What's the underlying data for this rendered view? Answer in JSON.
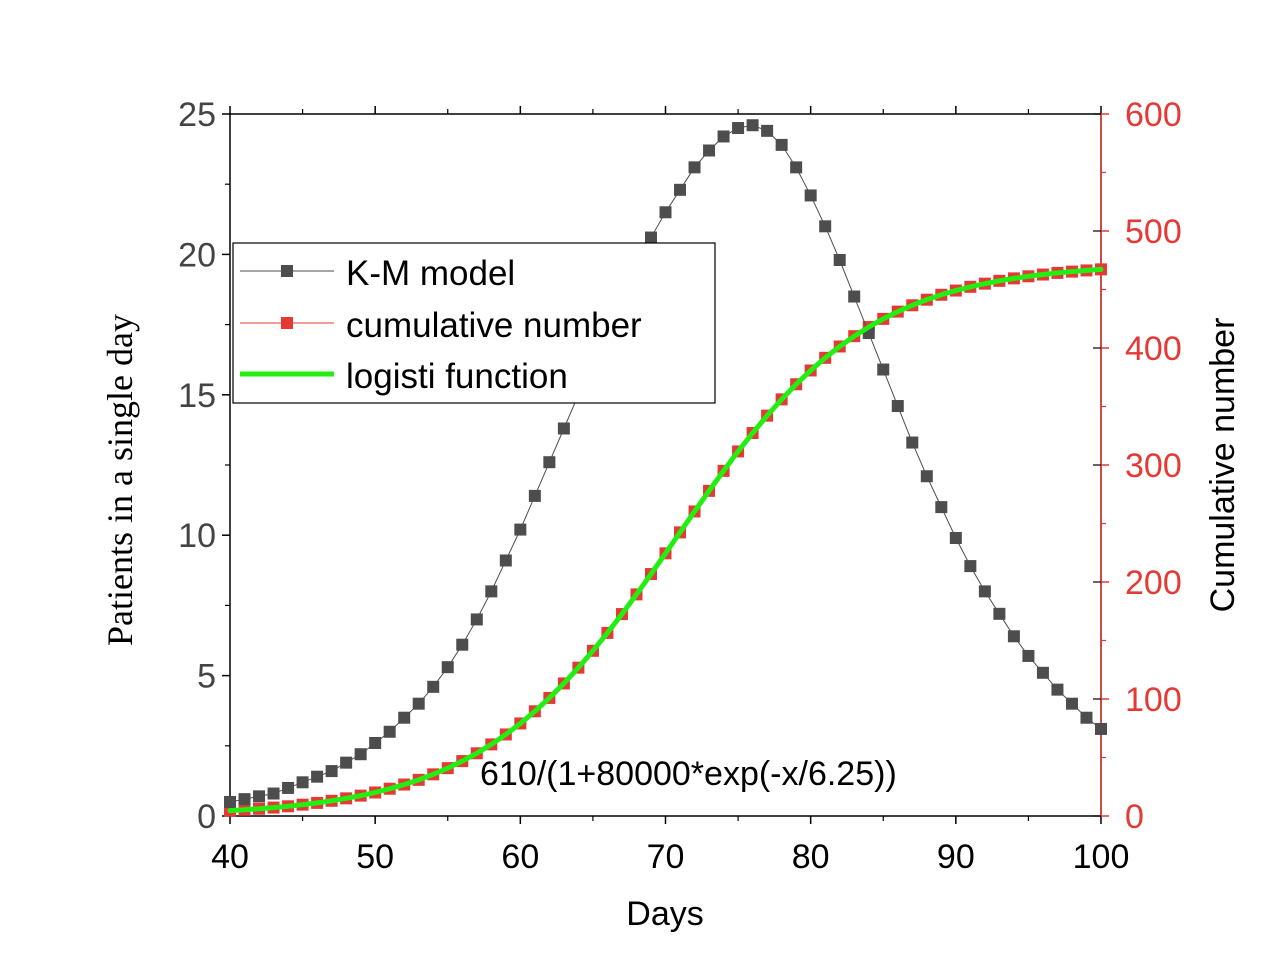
{
  "chart_data": {
    "type": "line",
    "xlabel": "Days",
    "ylabel": "Patients in a single day",
    "y2label": "Cumulative number",
    "xlim": [
      40,
      100
    ],
    "ylim": [
      0,
      25
    ],
    "y2lim": [
      0,
      600
    ],
    "x_ticks": [
      "40",
      "50",
      "60",
      "70",
      "80",
      "90",
      "100"
    ],
    "y_ticks": [
      "0",
      "5",
      "10",
      "15",
      "20",
      "25"
    ],
    "y2_ticks": [
      "0",
      "100",
      "200",
      "300",
      "400",
      "500",
      "600"
    ],
    "grid": false,
    "legend_placement": "upper-left",
    "annotation": "610/(1+80000*exp(-x/6.25))",
    "colors": {
      "km": "#4d4d4d",
      "cumulative": "#e53935",
      "logistic": "#22ee11",
      "right_axis": "#e53935"
    },
    "series": [
      {
        "name": "K-M model",
        "axis": "left",
        "marker": "square",
        "x": [
          40,
          41,
          42,
          43,
          44,
          45,
          46,
          47,
          48,
          49,
          50,
          51,
          52,
          53,
          54,
          55,
          56,
          57,
          58,
          59,
          60,
          61,
          62,
          63,
          64,
          65,
          66,
          67,
          68,
          69,
          70,
          71,
          72,
          73,
          74,
          75,
          76,
          77,
          78,
          79,
          80,
          81,
          82,
          83,
          84,
          85,
          86,
          87,
          88,
          89,
          90,
          91,
          92,
          93,
          94,
          95,
          96,
          97,
          98,
          99,
          100
        ],
        "y": [
          0.5,
          0.6,
          0.7,
          0.8,
          1.0,
          1.2,
          1.4,
          1.6,
          1.9,
          2.2,
          2.6,
          3.0,
          3.5,
          4.0,
          4.6,
          5.3,
          6.1,
          7.0,
          8.0,
          9.1,
          10.2,
          11.4,
          12.6,
          13.8,
          15.0,
          16.2,
          17.4,
          18.5,
          19.6,
          20.6,
          21.5,
          22.3,
          23.1,
          23.7,
          24.2,
          24.5,
          24.6,
          24.4,
          23.9,
          23.1,
          22.1,
          21.0,
          19.8,
          18.5,
          17.2,
          15.9,
          14.6,
          13.3,
          12.1,
          11.0,
          9.9,
          8.9,
          8.0,
          7.2,
          6.4,
          5.7,
          5.1,
          4.5,
          4.0,
          3.5,
          3.1
        ]
      },
      {
        "name": "cumulative number",
        "axis": "right",
        "marker": "square",
        "x": [
          40,
          41,
          42,
          43,
          44,
          45,
          46,
          47,
          48,
          49,
          50,
          51,
          52,
          53,
          54,
          55,
          56,
          57,
          58,
          59,
          60,
          61,
          62,
          63,
          64,
          65,
          66,
          67,
          68,
          69,
          70,
          71,
          72,
          73,
          74,
          75,
          76,
          77,
          78,
          79,
          80,
          81,
          82,
          83,
          84,
          85,
          86,
          87,
          88,
          89,
          90,
          91,
          92,
          93,
          94,
          95,
          96,
          97,
          98,
          99,
          100
        ],
        "y": [
          4.6,
          5.3,
          6.2,
          7.2,
          8.3,
          9.7,
          11.2,
          13.0,
          15.1,
          17.4,
          20.1,
          23.3,
          26.9,
          30.9,
          35.6,
          40.9,
          46.9,
          53.6,
          61.2,
          69.7,
          79.1,
          89.5,
          100.9,
          113.3,
          126.8,
          141.2,
          156.5,
          172.6,
          189.4,
          206.8,
          224.5,
          242.4,
          260.3,
          277.9,
          295.0,
          311.6,
          327.3,
          342.2,
          356.1,
          369.0,
          380.8,
          391.6,
          401.3,
          410.1,
          417.9,
          424.9,
          431.1,
          436.5,
          441.3,
          445.5,
          449.1,
          452.3,
          455.0,
          457.4,
          459.5,
          461.3,
          462.8,
          464.2,
          465.3,
          466.3,
          467.2
        ]
      },
      {
        "name": "logisti function",
        "axis": "right",
        "marker": "none",
        "formula": "610/(1+80000*exp(-x/6.25))"
      }
    ]
  }
}
